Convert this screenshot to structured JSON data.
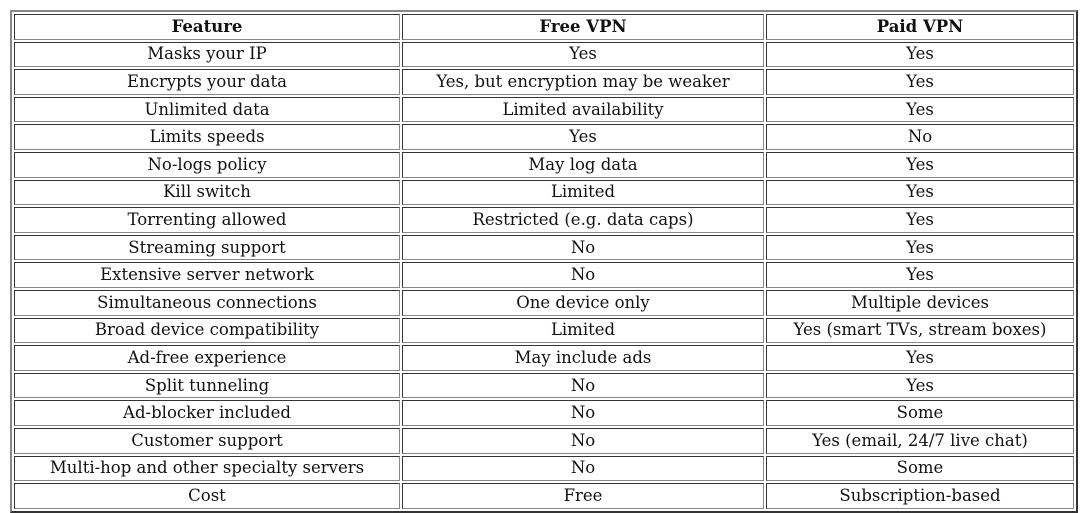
{
  "table": {
    "headers": [
      "Feature",
      "Free VPN",
      "Paid VPN"
    ],
    "rows": [
      [
        "Masks your IP",
        "Yes",
        "Yes"
      ],
      [
        "Encrypts your data",
        "Yes, but encryption may be weaker",
        "Yes"
      ],
      [
        "Unlimited data",
        "Limited availability",
        "Yes"
      ],
      [
        "Limits speeds",
        "Yes",
        "No"
      ],
      [
        "No-logs policy",
        "May log data",
        "Yes"
      ],
      [
        "Kill switch",
        "Limited",
        "Yes"
      ],
      [
        "Torrenting allowed",
        "Restricted (e.g. data caps)",
        "Yes"
      ],
      [
        "Streaming support",
        "No",
        "Yes"
      ],
      [
        "Extensive server network",
        "No",
        "Yes"
      ],
      [
        "Simultaneous connections",
        "One device only",
        "Multiple devices"
      ],
      [
        "Broad device compatibility",
        "Limited",
        "Yes (smart TVs, stream boxes)"
      ],
      [
        "Ad-free experience",
        "May include ads",
        "Yes"
      ],
      [
        "Split tunneling",
        "No",
        "Yes"
      ],
      [
        "Ad-blocker included",
        "No",
        "Some"
      ],
      [
        "Customer support",
        "No",
        "Yes (email, 24/7 live chat)"
      ],
      [
        "Multi-hop and other specialty servers",
        "No",
        "Some"
      ],
      [
        "Cost",
        "Free",
        "Subscription-based"
      ]
    ]
  }
}
